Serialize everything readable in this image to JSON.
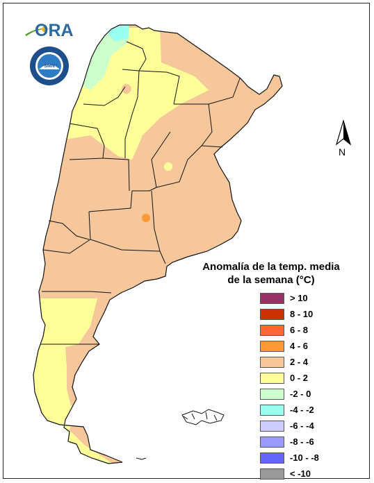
{
  "logo": {
    "text": "ORA",
    "seal_text": "SERVICIO METEOROLOGICO NACIONAL · ARGENTINA",
    "seal_center": "SMN"
  },
  "north_label": "N",
  "legend": {
    "title_line1": "Anomalía de la temp. media",
    "title_line2": "de la semana (°C)",
    "items": [
      {
        "label": "> 10",
        "color": "#993366"
      },
      {
        "label": "8 - 10",
        "color": "#cc3300"
      },
      {
        "label": "6 - 8",
        "color": "#ff6633"
      },
      {
        "label": "4 - 6",
        "color": "#ff9933"
      },
      {
        "label": "2 - 4",
        "color": "#f5c79a"
      },
      {
        "label": "0 - 2",
        "color": "#ffff99"
      },
      {
        "label": "-2 - 0",
        "color": "#ccffcc"
      },
      {
        "label": "-4 - -2",
        "color": "#99ffee"
      },
      {
        "label": "-6 - -4",
        "color": "#ccccff"
      },
      {
        "label": "-8 - -6",
        "color": "#9999ff"
      },
      {
        "label": "-10 - -8",
        "color": "#6666ff"
      },
      {
        "label": "< -10",
        "color": "#999999"
      }
    ]
  },
  "map_colors": {
    "warm": "#f5c79a",
    "mild": "#ffff99",
    "cool": "#99ffee",
    "cooler": "#ccffcc",
    "hot_spot": "#ff9933",
    "border": "#111111"
  }
}
